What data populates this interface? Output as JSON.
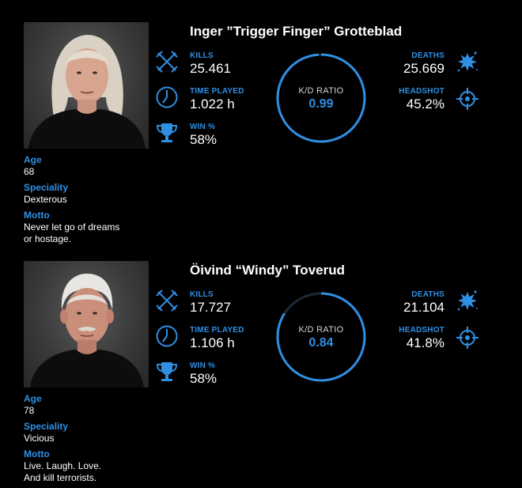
{
  "labels": {
    "age": "Age",
    "speciality": "Speciality",
    "motto": "Motto",
    "kills": "KILLS",
    "time_played": "TIME PLAYED",
    "win": "WIN %",
    "deaths": "DEATHS",
    "headshot": "HEADSHOT",
    "kd_ratio": "K/D RATIO"
  },
  "colors": {
    "accent": "#2f8fe3",
    "ring_track": "#1c2a38",
    "background": "#000000"
  },
  "icons": {
    "kills": "crossed-swords-icon",
    "time_played": "clock-icon",
    "win": "trophy-icon",
    "deaths": "splat-icon",
    "headshot": "crosshair-icon"
  },
  "profiles": [
    {
      "name": "Inger ”Trigger Finger” Grotteblad",
      "age": "68",
      "speciality": "Dexterous",
      "motto_line1": "Never let go of dreams",
      "motto_line2": "or hostage.",
      "kills": "25.461",
      "time_played": "1.022 h",
      "win": "58%",
      "deaths": "25.669",
      "headshot": "45.2%",
      "kd_ratio": "0.99",
      "kd_fraction": 0.99
    },
    {
      "name": "Öivind “Windy” Toverud",
      "age": "78",
      "speciality": "Vicious",
      "motto_line1": "Live. Laugh. Love.",
      "motto_line2": "And kill terrorists.",
      "kills": "17.727",
      "time_played": "1.106 h",
      "win": "58%",
      "deaths": "21.104",
      "headshot": "41.8%",
      "kd_ratio": "0.84",
      "kd_fraction": 0.84
    }
  ]
}
